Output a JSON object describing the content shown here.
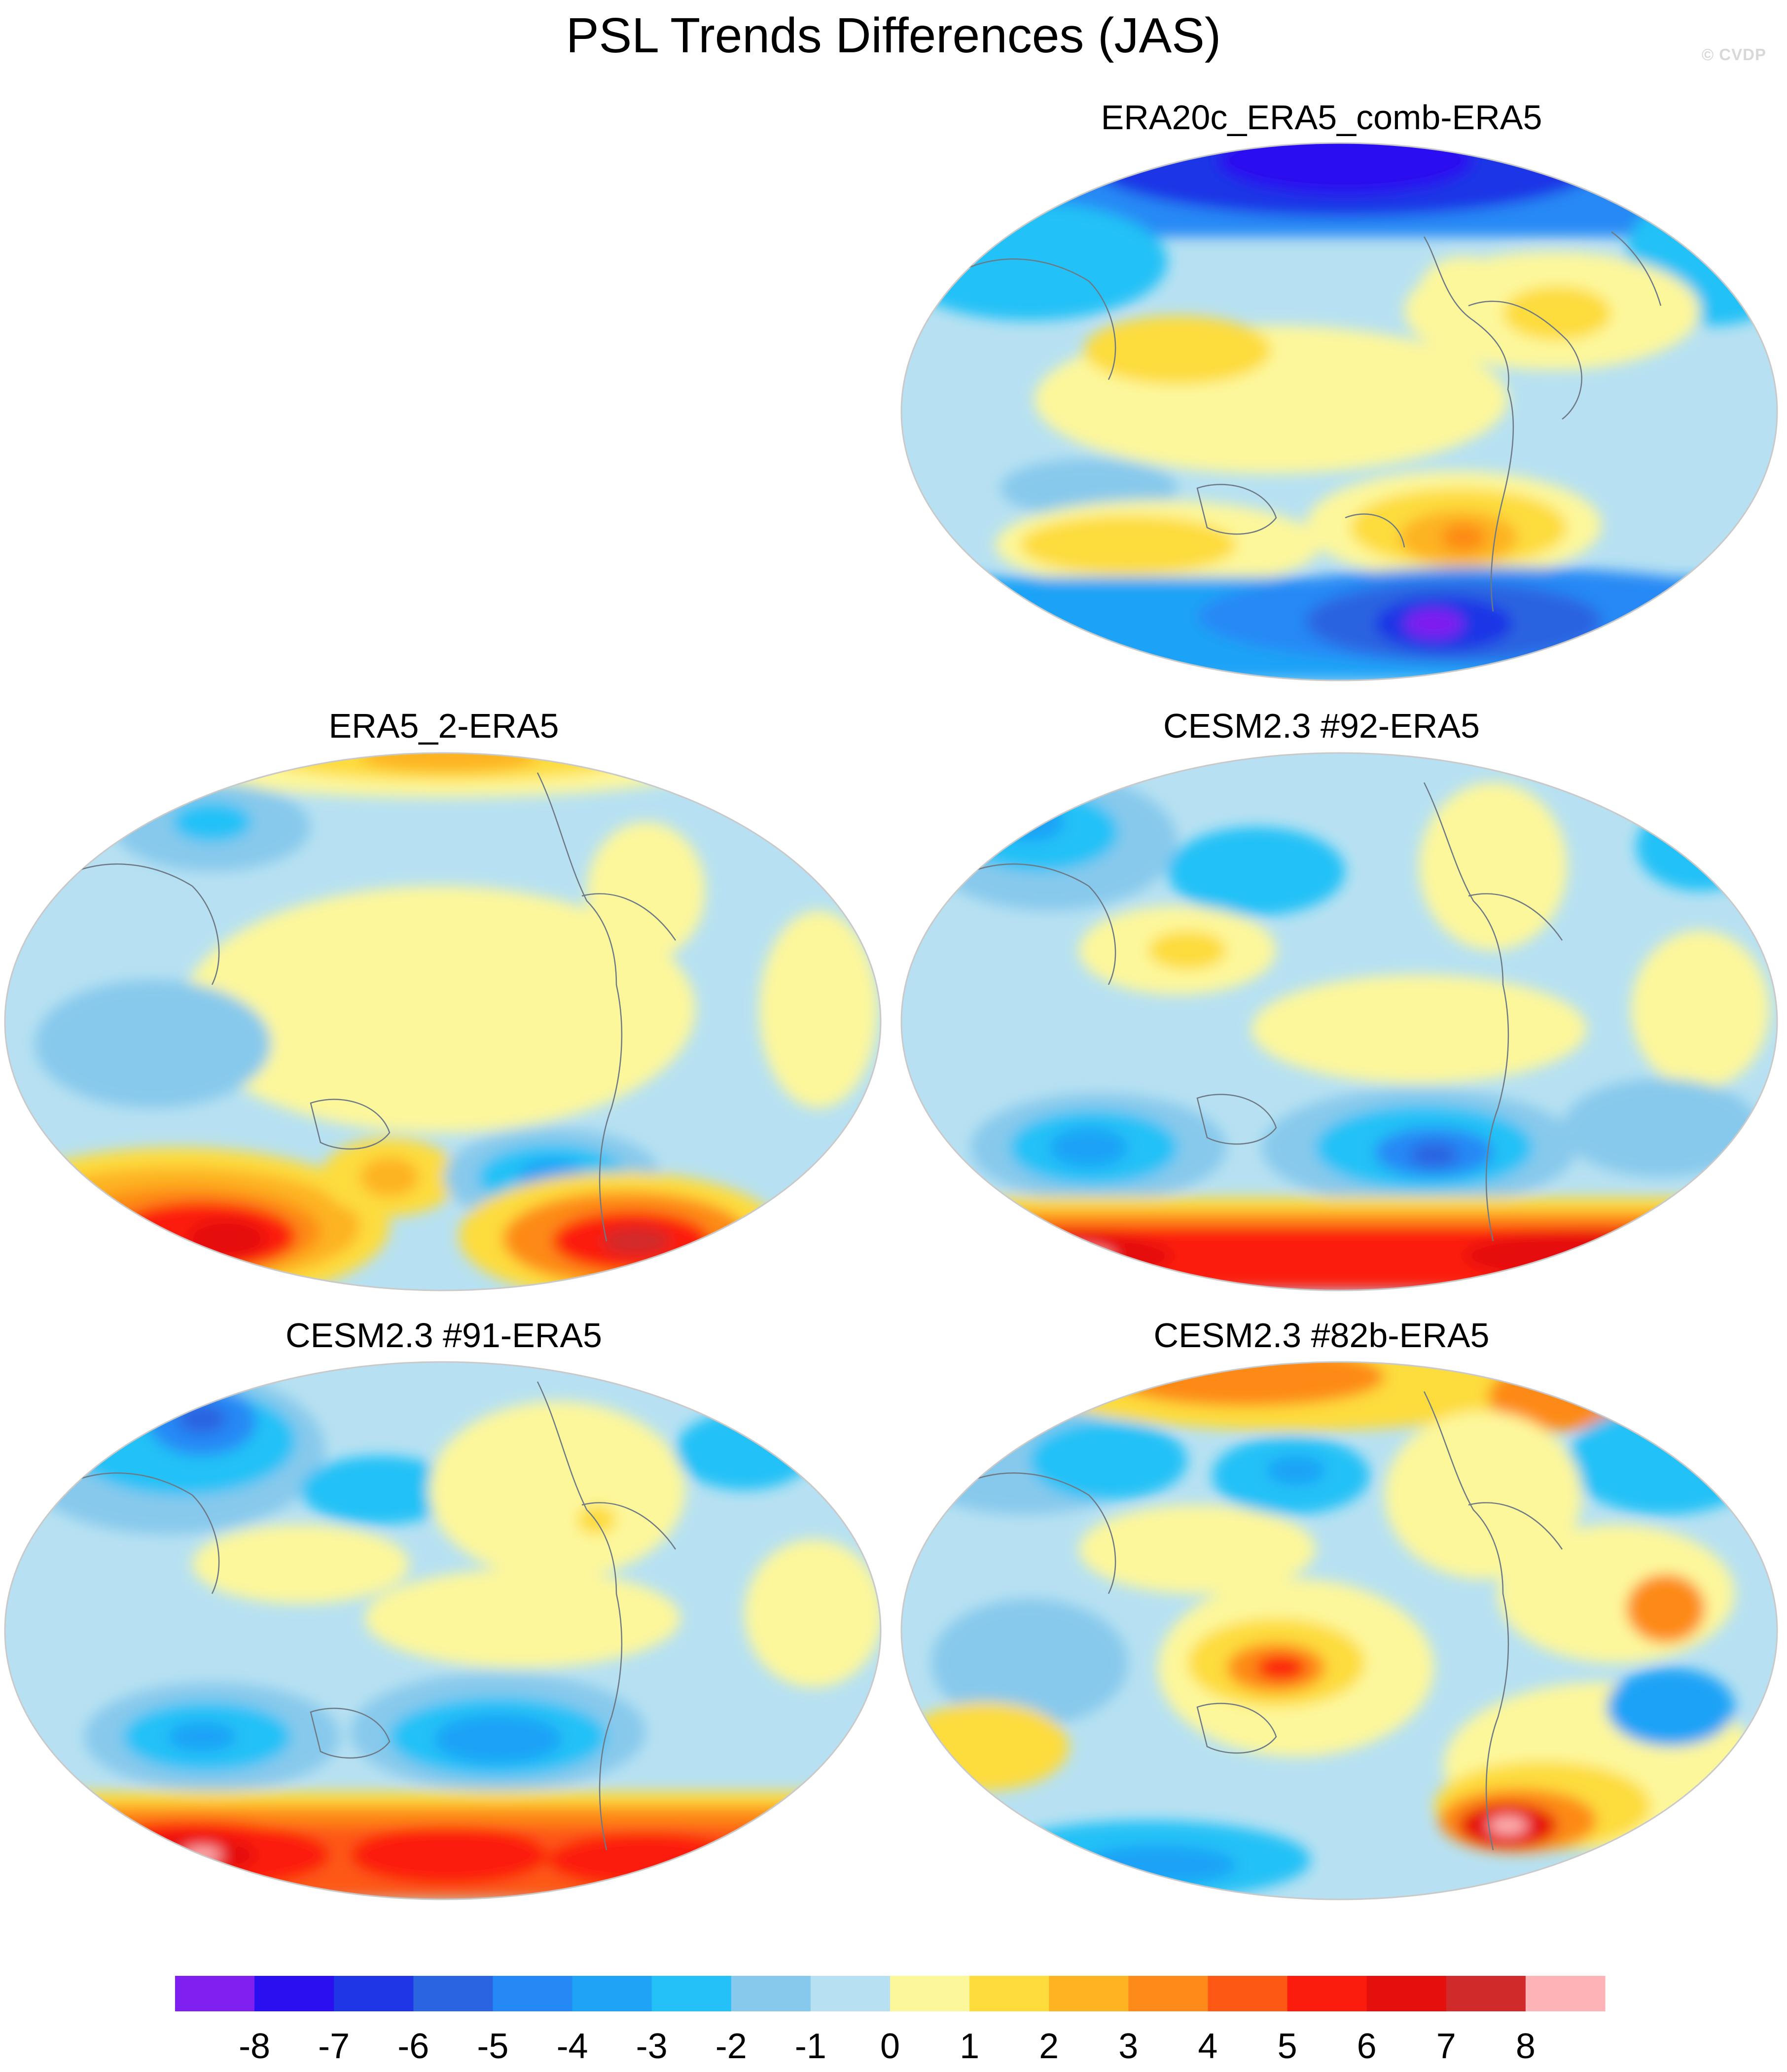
{
  "title": "PSL Trends Differences (JAS)",
  "watermark": "© CVDP",
  "panels": [
    {
      "id": "p0",
      "title": "ERA20c_ERA5_comb-ERA5"
    },
    {
      "id": "p1",
      "title": "ERA5_2-ERA5"
    },
    {
      "id": "p2",
      "title": "CESM2.3 #92-ERA5"
    },
    {
      "id": "p3",
      "title": "CESM2.3 #91-ERA5"
    },
    {
      "id": "p4",
      "title": "CESM2.3 #82b-ERA5"
    }
  ],
  "colorbar": {
    "labels": [
      "-8",
      "-7",
      "-6",
      "-5",
      "-4",
      "-3",
      "-2",
      "-1",
      "0",
      "1",
      "2",
      "3",
      "4",
      "5",
      "6",
      "7",
      "8"
    ],
    "colors": [
      "#7f1ff0",
      "#2a10f0",
      "#1f36e6",
      "#2b64e0",
      "#2589f5",
      "#1ea3f7",
      "#23c1f7",
      "#87c9ec",
      "#b7e1f2",
      "#fdf79b",
      "#fddc3c",
      "#fdb322",
      "#fd8a19",
      "#fd5915",
      "#fc1c0d",
      "#e50f0d",
      "#d12a2a",
      "#feb3b6"
    ]
  },
  "map_palette": {
    "neutral_neg": "#b7e1f2",
    "neutral_pos": "#fdf79b",
    "land_outline": "#6d7a85"
  }
}
